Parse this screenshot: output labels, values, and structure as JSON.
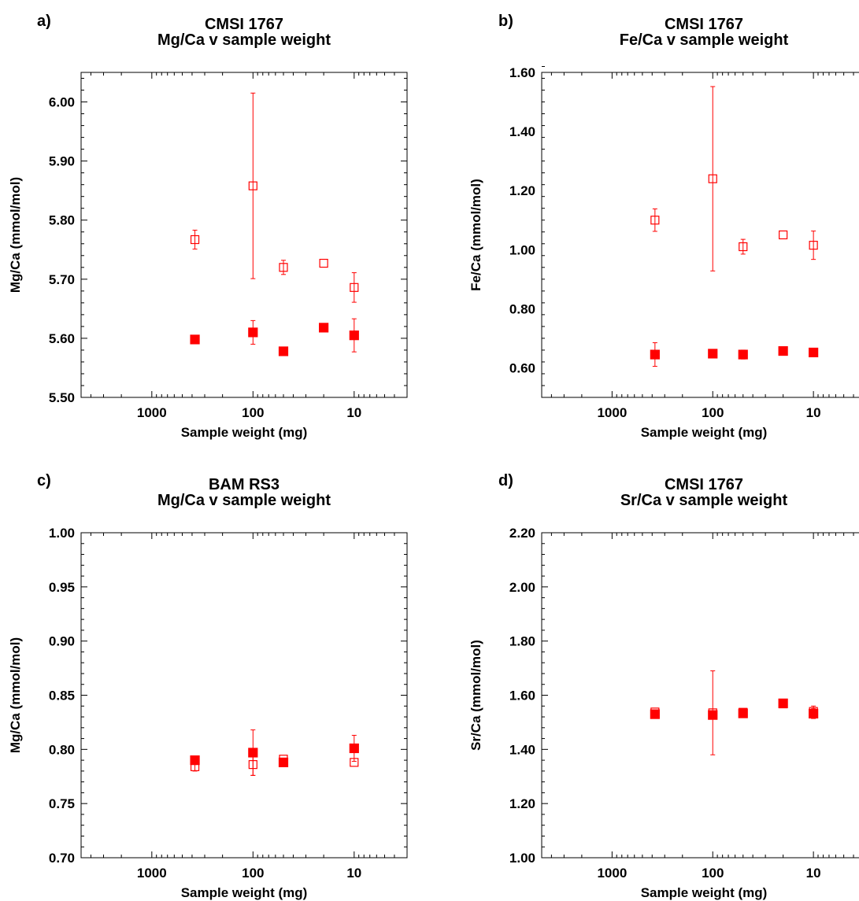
{
  "chart_data": [
    {
      "type": "scatter",
      "panel_label": "a)",
      "title": [
        "CMSI 1767",
        "Mg/Ca  v sample weight"
      ],
      "xlabel": "Sample weight (mg)",
      "ylabel": "Mg/Ca (mmol/mol)",
      "x_scale": "log",
      "x_reversed": true,
      "xlim": [
        5000,
        3
      ],
      "ylim": [
        5.5,
        6.05
      ],
      "x_ticks": [
        1000,
        100,
        10
      ],
      "x_tick_labels": [
        "1000",
        "100",
        "10"
      ],
      "y_ticks": [
        5.5,
        5.6,
        5.7,
        5.8,
        5.9,
        6.0
      ],
      "y_tick_labels": [
        "5.50",
        "5.60",
        "5.70",
        "5.80",
        "5.90",
        "6.00"
      ],
      "y_minor_step": 0.02,
      "series": [
        {
          "marker": "open-square",
          "color": "#ff0000",
          "points": [
            {
              "x": 375,
              "y": 5.767,
              "err": 0.016
            },
            {
              "x": 100,
              "y": 5.858,
              "err": 0.157
            },
            {
              "x": 50,
              "y": 5.72,
              "err": 0.012
            },
            {
              "x": 20,
              "y": 5.727,
              "err": 0
            },
            {
              "x": 10,
              "y": 5.686,
              "err": 0.025
            }
          ]
        },
        {
          "marker": "filled-square",
          "color": "#ff0000",
          "points": [
            {
              "x": 375,
              "y": 5.598,
              "err": 0
            },
            {
              "x": 100,
              "y": 5.61,
              "err": 0.02
            },
            {
              "x": 50,
              "y": 5.578,
              "err": 0
            },
            {
              "x": 20,
              "y": 5.618,
              "err": 0
            },
            {
              "x": 10,
              "y": 5.605,
              "err": 0.028
            }
          ]
        }
      ]
    },
    {
      "type": "scatter",
      "panel_label": "b)",
      "title": [
        "CMSI 1767",
        "Fe/Ca  v sample weight"
      ],
      "xlabel": "Sample weight (mg)",
      "ylabel": "Fe/Ca (mmol/mol)",
      "x_scale": "log",
      "x_reversed": true,
      "xlim": [
        5000,
        3
      ],
      "ylim": [
        0.5,
        1.6
      ],
      "x_ticks": [
        1000,
        100,
        10
      ],
      "x_tick_labels": [
        "1000",
        "100",
        "10"
      ],
      "y_ticks": [
        0.6,
        0.8,
        1.0,
        1.2,
        1.4,
        1.6
      ],
      "y_tick_labels": [
        "0.60",
        "0.80",
        "1.00",
        "1.20",
        "1.40",
        "1.60"
      ],
      "y_minor_step": 0.04,
      "series": [
        {
          "marker": "open-square",
          "color": "#ff0000",
          "points": [
            {
              "x": 375,
              "y": 1.1,
              "err": 0.038
            },
            {
              "x": 100,
              "y": 1.24,
              "err": 0.312
            },
            {
              "x": 50,
              "y": 1.01,
              "err": 0.025
            },
            {
              "x": 20,
              "y": 1.05,
              "err": 0
            },
            {
              "x": 10,
              "y": 1.015,
              "err": 0.048
            }
          ]
        },
        {
          "marker": "filled-square",
          "color": "#ff0000",
          "points": [
            {
              "x": 375,
              "y": 0.645,
              "err": 0.04
            },
            {
              "x": 100,
              "y": 0.648,
              "err": 0.01
            },
            {
              "x": 50,
              "y": 0.645,
              "err": 0.015
            },
            {
              "x": 20,
              "y": 0.657,
              "err": 0
            },
            {
              "x": 10,
              "y": 0.652,
              "err": 0
            }
          ]
        }
      ]
    },
    {
      "type": "scatter",
      "panel_label": "c)",
      "title": [
        "BAM RS3",
        "Mg/Ca  v sample weight"
      ],
      "xlabel": "Sample weight (mg)",
      "ylabel": "Mg/Ca (mmol/mol)",
      "x_scale": "log",
      "x_reversed": true,
      "xlim": [
        5000,
        3
      ],
      "ylim": [
        0.7,
        1.0
      ],
      "x_ticks": [
        1000,
        100,
        10
      ],
      "x_tick_labels": [
        "1000",
        "100",
        "10"
      ],
      "y_ticks": [
        0.7,
        0.75,
        0.8,
        0.85,
        0.9,
        0.95,
        1.0
      ],
      "y_tick_labels": [
        "0.70",
        "0.75",
        "0.80",
        "0.85",
        "0.90",
        "0.95",
        "1.00"
      ],
      "y_minor_step": 0.01,
      "series": [
        {
          "marker": "open-square",
          "color": "#ff0000",
          "points": [
            {
              "x": 375,
              "y": 0.784,
              "err": 0.004
            },
            {
              "x": 100,
              "y": 0.786,
              "err": 0.01
            },
            {
              "x": 50,
              "y": 0.791,
              "err": 0
            },
            {
              "x": 10,
              "y": 0.788,
              "err": 0
            }
          ]
        },
        {
          "marker": "filled-square",
          "color": "#ff0000",
          "points": [
            {
              "x": 375,
              "y": 0.79,
              "err": 0.004
            },
            {
              "x": 100,
              "y": 0.797,
              "err": 0.021
            },
            {
              "x": 50,
              "y": 0.788,
              "err": 0
            },
            {
              "x": 10,
              "y": 0.801,
              "err": 0.012
            }
          ]
        }
      ]
    },
    {
      "type": "scatter",
      "panel_label": "d)",
      "title": [
        "CMSI 1767",
        "Sr/Ca  v sample weight"
      ],
      "xlabel": "Sample weight (mg)",
      "ylabel": "Sr/Ca (mmol/mol)",
      "x_scale": "log",
      "x_reversed": true,
      "xlim": [
        5000,
        3
      ],
      "ylim": [
        1.0,
        2.2
      ],
      "x_ticks": [
        1000,
        100,
        10
      ],
      "x_tick_labels": [
        "1000",
        "100",
        "10"
      ],
      "y_ticks": [
        1.0,
        1.2,
        1.4,
        1.6,
        1.8,
        2.0,
        2.2
      ],
      "y_tick_labels": [
        "1.00",
        "1.20",
        "1.40",
        "1.60",
        "1.80",
        "2.00",
        "2.20"
      ],
      "y_minor_step": 0.04,
      "series": [
        {
          "marker": "open-square",
          "color": "#ff0000",
          "points": [
            {
              "x": 375,
              "y": 1.538,
              "err": 0
            },
            {
              "x": 100,
              "y": 1.535,
              "err": 0.155
            },
            {
              "x": 50,
              "y": 1.537,
              "err": 0
            },
            {
              "x": 20,
              "y": 1.568,
              "err": 0
            },
            {
              "x": 10,
              "y": 1.54,
              "err": 0.02
            }
          ]
        },
        {
          "marker": "filled-square",
          "color": "#ff0000",
          "points": [
            {
              "x": 375,
              "y": 1.53,
              "err": 0
            },
            {
              "x": 100,
              "y": 1.527,
              "err": 0
            },
            {
              "x": 50,
              "y": 1.533,
              "err": 0
            },
            {
              "x": 20,
              "y": 1.57,
              "err": 0
            },
            {
              "x": 10,
              "y": 1.532,
              "err": 0.018
            }
          ]
        }
      ]
    }
  ]
}
